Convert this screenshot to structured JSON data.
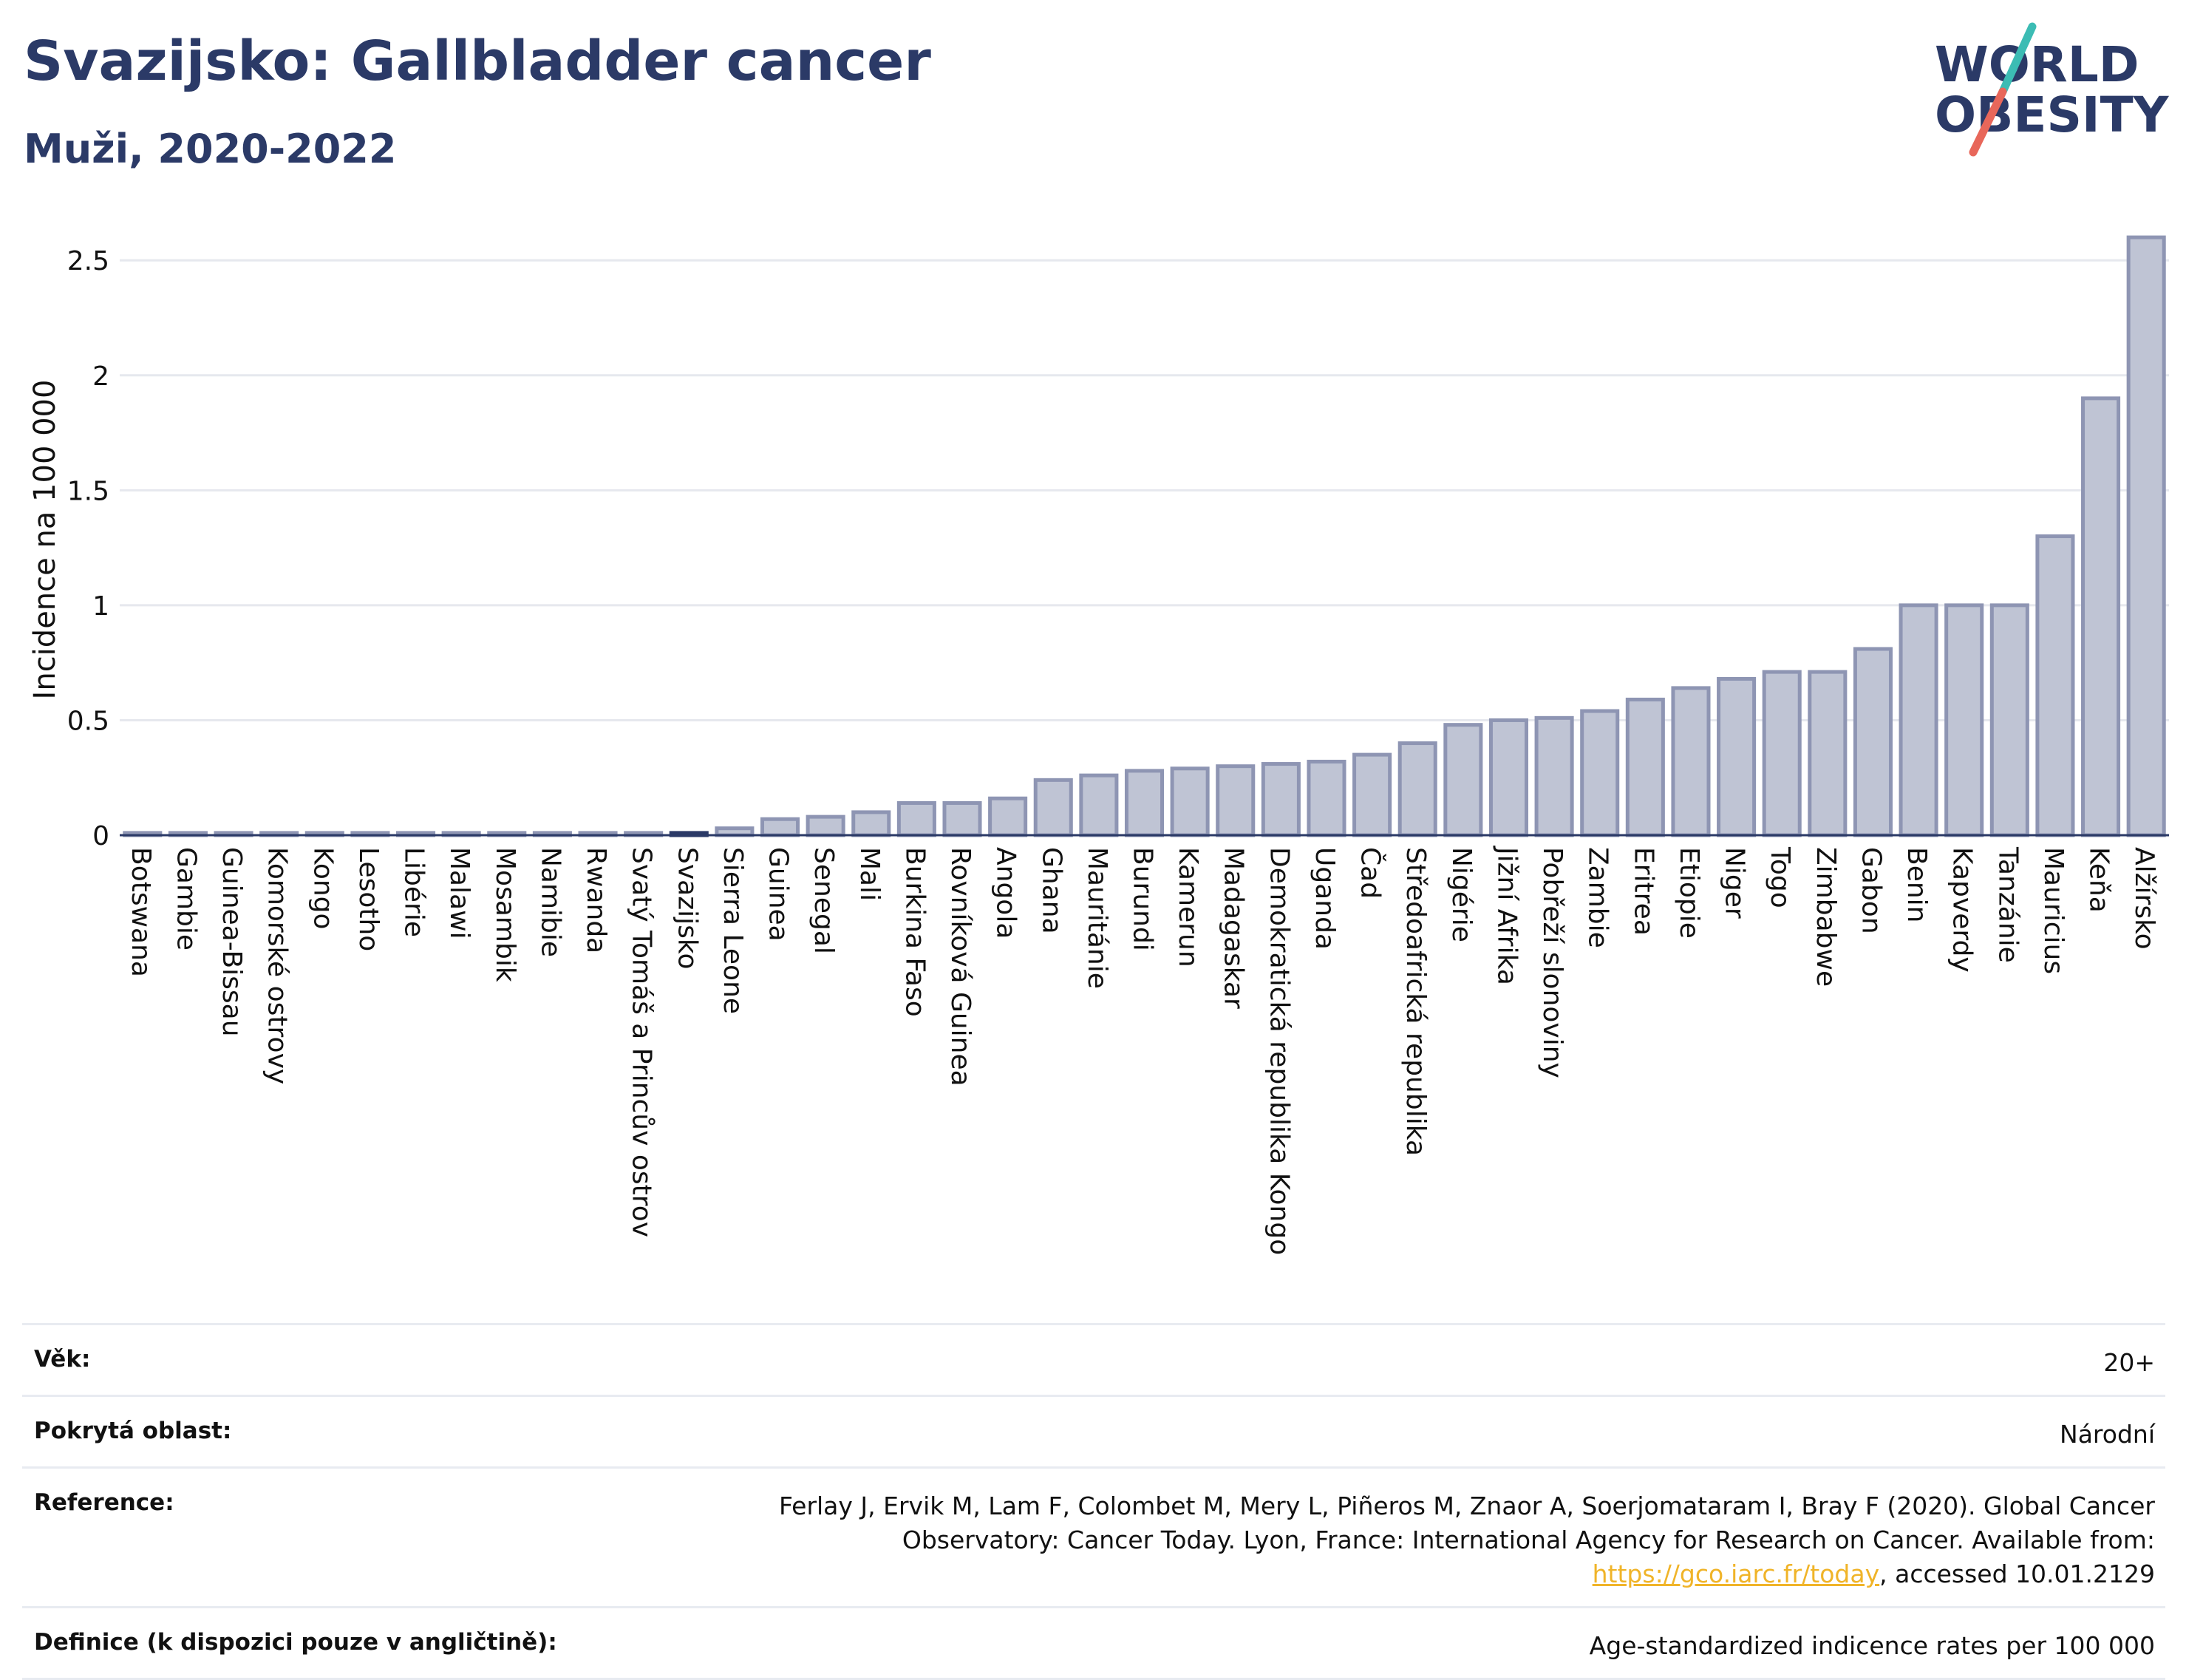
{
  "header": {
    "title": "Svazijsko: Gallbladder cancer",
    "subtitle": "Muži, 2020-2022"
  },
  "logo": {
    "line1": "WORLD",
    "line2": "OBESITY",
    "colors": {
      "text": "#2b3a67",
      "slash_teal": "#3cbcb4",
      "slash_red": "#e8675a"
    }
  },
  "chart_data": {
    "type": "bar",
    "ylabel": "Incidence na 100 000",
    "ylim": [
      0,
      2.7
    ],
    "yticks": [
      0,
      0.5,
      1,
      1.5,
      2,
      2.5
    ],
    "ytick_labels": [
      "0",
      "0.5",
      "1",
      "1.5",
      "2",
      "2.5"
    ],
    "grid": true,
    "highlight": "Svazijsko",
    "colors": {
      "bar": "#bfc4d4",
      "bar_edge": "#8e95b3",
      "highlight": "#2b3a67"
    },
    "categories": [
      "Botswana",
      "Gambie",
      "Guinea-Bissau",
      "Komorské ostrovy",
      "Kongo",
      "Lesotho",
      "Libérie",
      "Malawi",
      "Mosambik",
      "Namibie",
      "Rwanda",
      "Svatý Tomáš a Princův ostrov",
      "Svazijsko",
      "Sierra Leone",
      "Guinea",
      "Senegal",
      "Mali",
      "Burkina Faso",
      "Rovníková Guinea",
      "Angola",
      "Ghana",
      "Mauritánie",
      "Burundi",
      "Kamerun",
      "Madagaskar",
      "Demokratická republika Kongo",
      "Uganda",
      "Čad",
      "Středoafrická republika",
      "Nigérie",
      "Jižní Afrika",
      "Pobřeží slonoviny",
      "Zambie",
      "Eritrea",
      "Etiopie",
      "Niger",
      "Togo",
      "Zimbabwe",
      "Gabon",
      "Benin",
      "Kapverdy",
      "Tanzánie",
      "Mauricius",
      "Keňa",
      "Alžírsko"
    ],
    "values": [
      0.01,
      0.01,
      0.01,
      0.01,
      0.01,
      0.01,
      0.01,
      0.01,
      0.01,
      0.01,
      0.01,
      0.01,
      0.01,
      0.03,
      0.07,
      0.08,
      0.1,
      0.14,
      0.14,
      0.16,
      0.24,
      0.26,
      0.28,
      0.29,
      0.3,
      0.31,
      0.32,
      0.35,
      0.4,
      0.48,
      0.5,
      0.51,
      0.54,
      0.59,
      0.64,
      0.68,
      0.71,
      0.71,
      0.81,
      1.0,
      1.0,
      1.0,
      1.3,
      1.9,
      2.6
    ]
  },
  "meta": {
    "age_label": "Věk:",
    "age_value": "20+",
    "area_label": "Pokrytá oblast:",
    "area_value": "Národní",
    "ref_label": "Reference:",
    "ref_text_1": "Ferlay J, Ervik M, Lam F, Colombet M, Mery L, Piñeros M, Znaor A, Soerjomataram I, Bray F (2020). Global Cancer Observatory: Cancer Today. Lyon, France: International Agency for Research on Cancer. Available from: ",
    "ref_link": "https://gco.iarc.fr/today",
    "ref_text_2": ", accessed 10.01.2129",
    "def_label": "Definice (k dispozici pouze v angličtině):",
    "def_value": "Age-standardized indicence rates per 100 000"
  }
}
